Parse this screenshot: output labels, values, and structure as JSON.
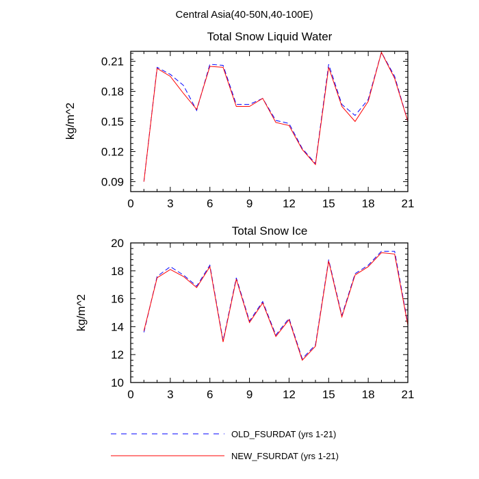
{
  "figure_title": "Central Asia(40-50N,40-100E)",
  "legend": [
    {
      "label": "OLD_FSURDAT (yrs 1-21)",
      "color": "#0000ff",
      "dash": "dashed"
    },
    {
      "label": "NEW_FSURDAT (yrs 1-21)",
      "color": "#ff0000",
      "dash": "solid"
    }
  ],
  "chart_data": [
    {
      "type": "line",
      "title": "Total Snow Liquid Water",
      "xlabel": "",
      "ylabel": "kg/m^2",
      "xlim": [
        0,
        21
      ],
      "ylim": [
        0.08,
        0.22
      ],
      "xticks": [
        0,
        3,
        6,
        9,
        12,
        15,
        18,
        21
      ],
      "yticks": [
        0.09,
        0.12,
        0.15,
        0.18,
        0.21
      ],
      "ytick_labels": [
        "0.09",
        "0.12",
        "0.15",
        "0.18",
        "0.21"
      ],
      "x": [
        1,
        2,
        3,
        4,
        5,
        6,
        7,
        8,
        9,
        10,
        11,
        12,
        13,
        14,
        15,
        16,
        17,
        18,
        19,
        20,
        21
      ],
      "series": [
        {
          "name": "OLD_FSURDAT (yrs 1-21)",
          "color": "#0000ff",
          "dash": "dashed",
          "values": [
            0.09,
            0.204,
            0.197,
            0.186,
            0.161,
            0.207,
            0.206,
            0.167,
            0.167,
            0.173,
            0.151,
            0.148,
            0.123,
            0.108,
            0.207,
            0.167,
            0.156,
            0.172,
            0.219,
            0.195,
            0.15
          ]
        },
        {
          "name": "NEW_FSURDAT (yrs 1-21)",
          "color": "#ff0000",
          "dash": "solid",
          "values": [
            0.09,
            0.203,
            0.195,
            0.178,
            0.162,
            0.205,
            0.204,
            0.165,
            0.165,
            0.173,
            0.149,
            0.146,
            0.122,
            0.107,
            0.204,
            0.165,
            0.15,
            0.17,
            0.219,
            0.193,
            0.15
          ]
        }
      ]
    },
    {
      "type": "line",
      "title": "Total Snow Ice",
      "xlabel": "",
      "ylabel": "kg/m^2",
      "xlim": [
        0,
        21
      ],
      "ylim": [
        10,
        20
      ],
      "xticks": [
        0,
        3,
        6,
        9,
        12,
        15,
        18,
        21
      ],
      "yticks": [
        10,
        12,
        14,
        16,
        18,
        20
      ],
      "ytick_labels": [
        "10",
        "12",
        "14",
        "16",
        "18",
        "20"
      ],
      "x": [
        1,
        2,
        3,
        4,
        5,
        6,
        7,
        8,
        9,
        10,
        11,
        12,
        13,
        14,
        15,
        16,
        17,
        18,
        19,
        20,
        21
      ],
      "series": [
        {
          "name": "OLD_FSURDAT (yrs 1-21)",
          "color": "#0000ff",
          "dash": "dashed",
          "values": [
            13.6,
            17.6,
            18.3,
            17.7,
            16.9,
            18.4,
            13.0,
            17.5,
            14.4,
            15.8,
            13.4,
            14.6,
            11.7,
            12.7,
            18.8,
            14.8,
            17.8,
            18.4,
            19.4,
            19.4,
            14.2
          ]
        },
        {
          "name": "NEW_FSURDAT (yrs 1-21)",
          "color": "#ff0000",
          "dash": "solid",
          "values": [
            13.7,
            17.5,
            18.1,
            17.6,
            16.8,
            18.3,
            12.9,
            17.4,
            14.3,
            15.7,
            13.3,
            14.5,
            11.6,
            12.6,
            18.7,
            14.7,
            17.7,
            18.3,
            19.3,
            19.2,
            14.1
          ]
        }
      ]
    }
  ]
}
